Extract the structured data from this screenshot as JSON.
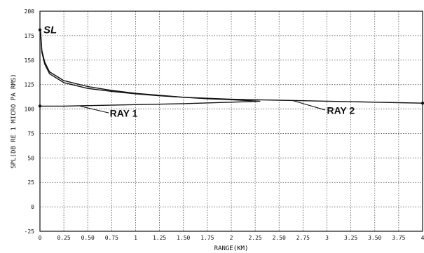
{
  "chart_data": {
    "type": "line",
    "title": "",
    "xlabel": "RANGE(KM)",
    "ylabel": "SPL(DB RE 1 MICRO PA RMS)",
    "xlim": [
      0,
      4
    ],
    "ylim": [
      -25,
      200
    ],
    "grid": true,
    "x_ticks": [
      0,
      0.25,
      0.5,
      0.75,
      1,
      1.25,
      1.5,
      1.75,
      2,
      2.25,
      2.5,
      2.75,
      3,
      3.25,
      3.5,
      3.75,
      4
    ],
    "x_tick_labels": [
      "0",
      "0.25",
      "0.50",
      "0.75",
      "1",
      "1.25",
      "1.50",
      "1.75",
      "2",
      "2.25",
      "2.50",
      "2.75",
      "3",
      "3.25",
      "3.50",
      "3.75",
      "4"
    ],
    "y_ticks": [
      -25,
      0,
      25,
      50,
      75,
      100,
      125,
      150,
      175,
      200
    ],
    "y_tick_labels": [
      "-25",
      "0",
      "25",
      "50",
      "75",
      "100",
      "125",
      "150",
      "175",
      "200"
    ],
    "series": [
      {
        "name": "RAY 1",
        "x": [
          0.005,
          0.02,
          0.05,
          0.1,
          0.25,
          0.5,
          0.75,
          1.0,
          1.25,
          1.5,
          1.75,
          2.0,
          2.2,
          2.3,
          2.0,
          1.5,
          1.0,
          0.5,
          0.25,
          0.0
        ],
        "y": [
          181,
          160,
          148,
          138,
          129,
          123,
          119,
          116,
          114,
          112,
          110.5,
          109.5,
          108.5,
          108,
          107,
          105.5,
          104.5,
          103.5,
          103,
          103
        ]
      },
      {
        "name": "RAY 2",
        "x": [
          0.005,
          0.02,
          0.05,
          0.1,
          0.25,
          0.5,
          0.75,
          1.0,
          1.25,
          1.5,
          1.75,
          2.0,
          2.25,
          2.5,
          2.75,
          3.0,
          3.25,
          3.5,
          3.75,
          4.0
        ],
        "y": [
          181,
          158,
          146,
          136,
          127,
          121,
          118,
          115.5,
          113.5,
          112,
          111,
          110,
          109.5,
          109,
          108.5,
          108,
          107.5,
          107,
          106.5,
          106
        ]
      }
    ],
    "annotations": [
      {
        "text": "SL",
        "x": 0,
        "y": 181
      },
      {
        "text": "RAY 1",
        "x": 0.85,
        "y": 95
      },
      {
        "text": "RAY 2",
        "x": 3.08,
        "y": 97
      }
    ]
  }
}
